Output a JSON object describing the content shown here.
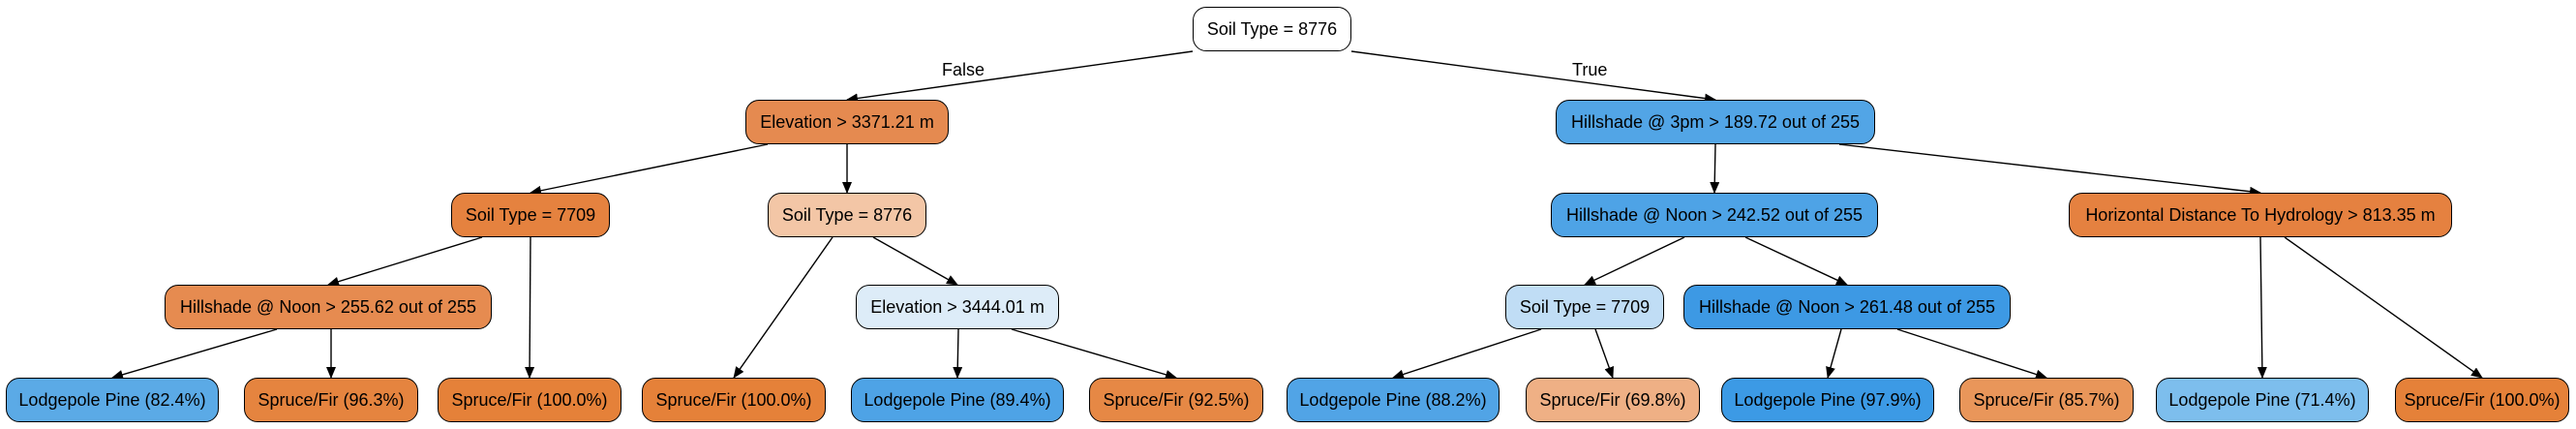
{
  "edge_labels": {
    "false_label": "False",
    "true_label": "True"
  },
  "nodes": {
    "root": {
      "label": "Soil Type = 8776",
      "fill": "#ffffff"
    },
    "elev1": {
      "label": "Elevation > 3371.21 m",
      "fill": "#e58a50"
    },
    "hs3": {
      "label": "Hillshade @ 3pm > 189.72 out of 255",
      "fill": "#52a5e6"
    },
    "soil7709a": {
      "label": "Soil Type = 7709",
      "fill": "#e5823f"
    },
    "soil8776b": {
      "label": "Soil Type = 8776",
      "fill": "#f3c6a6"
    },
    "hsnoon1": {
      "label": "Hillshade @ Noon > 242.52 out of 255",
      "fill": "#4ea3e6"
    },
    "hdist": {
      "label": "Horizontal Distance To Hydrology > 813.35 m",
      "fill": "#e58140"
    },
    "hsnoon2": {
      "label": "Hillshade @ Noon > 255.62 out of 255",
      "fill": "#e68b50"
    },
    "elev2": {
      "label": "Elevation > 3444.01 m",
      "fill": "#ddecf8"
    },
    "soil7709b": {
      "label": "Soil Type = 7709",
      "fill": "#c0ddf5"
    },
    "hsnoon3": {
      "label": "Hillshade @ Noon > 261.48 out of 255",
      "fill": "#3d99e4"
    },
    "leaf1": {
      "label": "Lodgepole Pine (82.4%)",
      "fill": "#5baae6"
    },
    "leaf2": {
      "label": "Spruce/Fir (96.3%)",
      "fill": "#e5843f"
    },
    "leaf3": {
      "label": "Spruce/Fir (100.0%)",
      "fill": "#e58139"
    },
    "leaf4": {
      "label": "Spruce/Fir (100.0%)",
      "fill": "#e58139"
    },
    "leaf5": {
      "label": "Lodgepole Pine (89.4%)",
      "fill": "#4ea3e6"
    },
    "leaf6": {
      "label": "Spruce/Fir (92.5%)",
      "fill": "#e68845"
    },
    "leaf7": {
      "label": "Lodgepole Pine (88.2%)",
      "fill": "#51a4e6"
    },
    "leaf8": {
      "label": "Spruce/Fir (69.8%)",
      "fill": "#efb085"
    },
    "leaf9": {
      "label": "Lodgepole Pine (97.9%)",
      "fill": "#3c9ae5"
    },
    "leaf10": {
      "label": "Spruce/Fir (85.7%)",
      "fill": "#e9965a"
    },
    "leaf11": {
      "label": "Lodgepole Pine (71.4%)",
      "fill": "#7dbeed"
    },
    "leaf12": {
      "label": "Spruce/Fir (100.0%)",
      "fill": "#e58139"
    }
  }
}
